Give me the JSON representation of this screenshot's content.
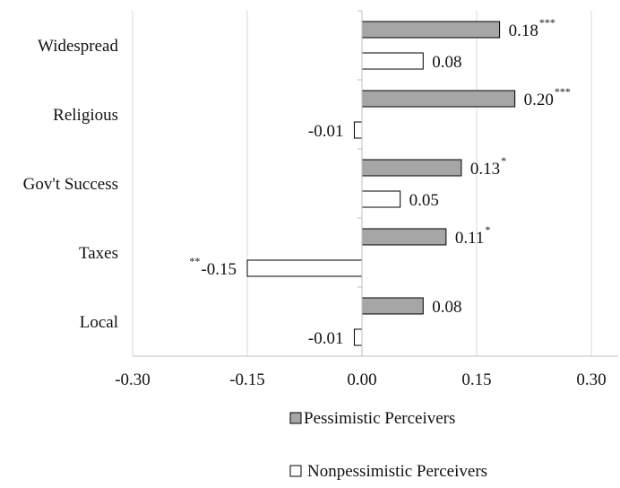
{
  "chart_data": {
    "type": "bar",
    "orientation": "horizontal",
    "categories": [
      "Widespread",
      "Religious",
      "Gov't Success",
      "Taxes",
      "Local"
    ],
    "series": [
      {
        "name": "Pessimistic Perceivers",
        "color": "#a6a6a6",
        "values": [
          0.18,
          0.2,
          0.13,
          0.11,
          0.08
        ],
        "labels": [
          "0.18",
          "0.20",
          "0.13",
          "0.11",
          "0.08"
        ],
        "significance": [
          "***",
          "***",
          "*",
          "*",
          ""
        ]
      },
      {
        "name": "Nonpessimistic Perceivers",
        "color": "#ffffff",
        "values": [
          0.08,
          -0.01,
          0.05,
          -0.15,
          -0.01
        ],
        "labels": [
          "0.08",
          "-0.01",
          "0.05",
          "-0.15",
          "-0.01"
        ],
        "significance": [
          "",
          "",
          "",
          "**",
          ""
        ]
      }
    ],
    "xlim": [
      -0.3,
      0.3
    ],
    "xticks": [
      -0.3,
      -0.15,
      0.0,
      0.15,
      0.3
    ],
    "xtick_labels": [
      "-0.30",
      "-0.15",
      "0.00",
      "0.15",
      "0.30"
    ],
    "grid": "vertical",
    "legend_position": "bottom"
  }
}
